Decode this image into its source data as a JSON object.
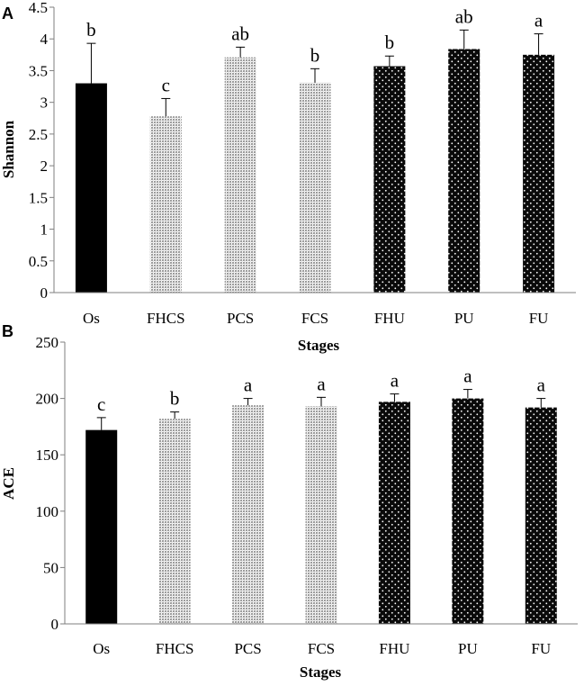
{
  "colors": {
    "solid": "#000000",
    "grey_pattern": "#b5b5b5",
    "dotted_dark": "#0a0a0a",
    "axis": "#7f7f7f"
  },
  "chart_data": [
    {
      "panel_label": "A",
      "type": "bar",
      "title": "",
      "xlabel": "Stages",
      "ylabel": "Shannon",
      "ylim": [
        0,
        4.5
      ],
      "yticks": [
        0,
        0.5,
        1,
        1.5,
        2,
        2.5,
        3,
        3.5,
        4,
        4.5
      ],
      "ytick_labels": [
        "0",
        "0.5",
        "1",
        "1.5",
        "2",
        "2.5",
        "3",
        "3.5",
        "4",
        "4.5"
      ],
      "categories": [
        "Os",
        "FHCS",
        "PCS",
        "FCS",
        "FHU",
        "PU",
        "FU"
      ],
      "values": [
        3.3,
        2.78,
        3.71,
        3.31,
        3.57,
        3.84,
        3.75
      ],
      "errors": [
        0.63,
        0.28,
        0.16,
        0.22,
        0.16,
        0.3,
        0.33
      ],
      "letters": [
        "b",
        "c",
        "ab",
        "b",
        "b",
        "ab",
        "a"
      ],
      "fills": [
        "solid",
        "grey",
        "grey",
        "grey",
        "dotted",
        "dotted",
        "dotted"
      ],
      "grid": false
    },
    {
      "panel_label": "B",
      "type": "bar",
      "title": "",
      "xlabel": "Stages",
      "ylabel": "ACE",
      "ylim": [
        0,
        250
      ],
      "yticks": [
        0,
        50,
        100,
        150,
        200,
        250
      ],
      "ytick_labels": [
        "0",
        "50",
        "100",
        "150",
        "200",
        "250"
      ],
      "categories": [
        "Os",
        "FHCS",
        "PCS",
        "FCS",
        "FHU",
        "PU",
        "FU"
      ],
      "values": [
        172,
        182,
        194,
        193,
        197,
        200,
        192
      ],
      "errors": [
        11,
        6,
        6,
        8,
        7,
        8,
        8
      ],
      "letters": [
        "c",
        "b",
        "a",
        "a",
        "a",
        "a",
        "a"
      ],
      "fills": [
        "solid",
        "grey",
        "grey",
        "grey",
        "dotted",
        "dotted",
        "dotted"
      ],
      "grid": false
    }
  ]
}
